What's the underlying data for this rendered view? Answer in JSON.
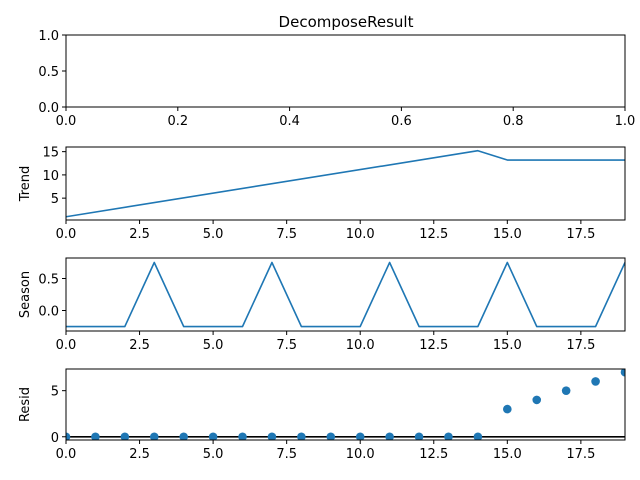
{
  "chart_data": {
    "title": "DecomposeResult",
    "color": "#1f77b4",
    "panels": [
      {
        "id": "observed",
        "type": "line",
        "ylabel": "",
        "xlim": [
          0,
          1
        ],
        "ylim": [
          0,
          1
        ],
        "x_ticks": [
          0,
          0.2,
          0.4,
          0.6,
          0.8,
          1
        ],
        "x_tick_labels": [
          "0.0",
          "0.2",
          "0.4",
          "0.6",
          "0.8",
          "1.0"
        ],
        "y_ticks": [
          0,
          0.5,
          1
        ],
        "y_tick_labels": [
          "0.0",
          "0.5",
          "1.0"
        ],
        "x": [],
        "values": []
      },
      {
        "id": "trend",
        "type": "line",
        "ylabel": "Trend",
        "xlim": [
          0,
          19
        ],
        "ylim": [
          0.3,
          16.0
        ],
        "x_ticks": [
          0,
          2.5,
          5,
          7.5,
          10,
          12.5,
          15,
          17.5
        ],
        "x_tick_labels": [
          "0.0",
          "2.5",
          "5.0",
          "7.5",
          "10.0",
          "12.5",
          "15.0",
          "17.5"
        ],
        "y_ticks": [
          5,
          10,
          15
        ],
        "y_tick_labels": [
          "5",
          "10",
          "15"
        ],
        "x": [
          0,
          14,
          15,
          19
        ],
        "values": [
          1.0,
          15.2,
          13.2,
          13.2
        ]
      },
      {
        "id": "seasonal",
        "type": "line",
        "ylabel": "Season",
        "xlim": [
          0,
          19
        ],
        "ylim": [
          -0.32,
          0.82
        ],
        "x_ticks": [
          0,
          2.5,
          5,
          7.5,
          10,
          12.5,
          15,
          17.5
        ],
        "x_tick_labels": [
          "0.0",
          "2.5",
          "5.0",
          "7.5",
          "10.0",
          "12.5",
          "15.0",
          "17.5"
        ],
        "y_ticks": [
          0,
          0.5
        ],
        "y_tick_labels": [
          "0.0",
          "0.5"
        ],
        "x": [
          0,
          1,
          2,
          3,
          4,
          5,
          6,
          7,
          8,
          9,
          10,
          11,
          12,
          13,
          14,
          15,
          16,
          17,
          18,
          19
        ],
        "values": [
          -0.25,
          -0.25,
          -0.25,
          0.75,
          -0.25,
          -0.25,
          -0.25,
          0.75,
          -0.25,
          -0.25,
          -0.25,
          0.75,
          -0.25,
          -0.25,
          -0.25,
          0.75,
          -0.25,
          -0.25,
          -0.25,
          0.75
        ]
      },
      {
        "id": "resid",
        "type": "scatter",
        "ylabel": "Resid",
        "xlim": [
          0,
          19
        ],
        "ylim": [
          -0.35,
          7.35
        ],
        "zero_line": 0,
        "x_ticks": [
          0,
          2.5,
          5,
          7.5,
          10,
          12.5,
          15,
          17.5
        ],
        "x_tick_labels": [
          "0.0",
          "2.5",
          "5.0",
          "7.5",
          "10.0",
          "12.5",
          "15.0",
          "17.5"
        ],
        "y_ticks": [
          0,
          5
        ],
        "y_tick_labels": [
          "0",
          "5"
        ],
        "x": [
          0,
          1,
          2,
          3,
          4,
          5,
          6,
          7,
          8,
          9,
          10,
          11,
          12,
          13,
          14,
          15,
          16,
          17,
          18,
          19
        ],
        "values": [
          0,
          0,
          0,
          0,
          0,
          0,
          0,
          0,
          0,
          0,
          0,
          0,
          0,
          0,
          0,
          3,
          4,
          5,
          6,
          7
        ]
      }
    ]
  }
}
